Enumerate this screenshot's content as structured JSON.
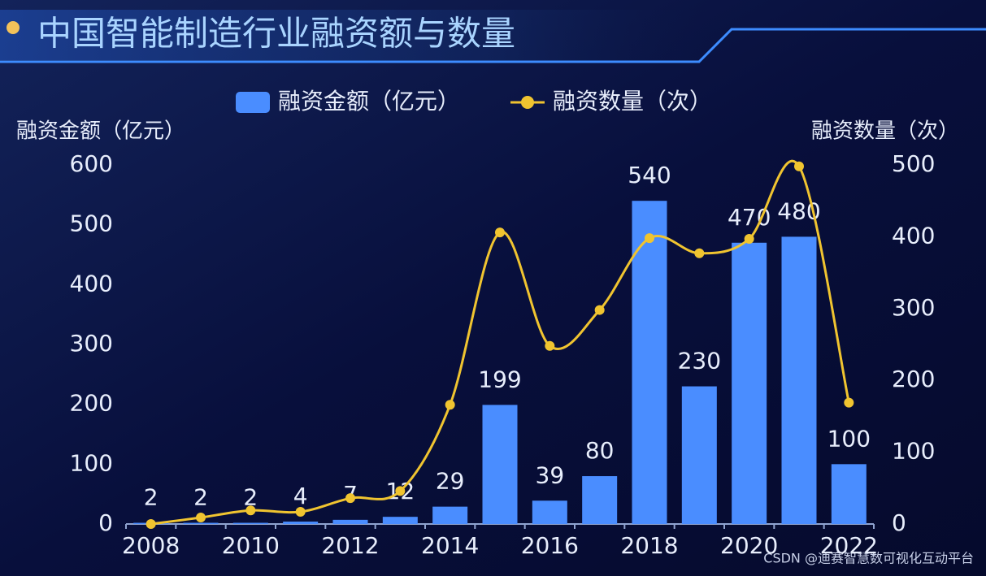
{
  "chart_data": {
    "type": "bar",
    "title": "中国智能制造行业融资额与数量",
    "y_label": "融资金额（亿元）",
    "y2_label": "融资数量（次）",
    "watermark": "CSDN @迪赛智慧数可视化互动平台",
    "categories": [
      "2008",
      null,
      "2010",
      null,
      "2012",
      null,
      "2014",
      null,
      "2016",
      null,
      "2018",
      null,
      "2020",
      null,
      "2022"
    ],
    "series": [
      {
        "name": "融资金额（亿元）",
        "type": "bar",
        "color": "#4a8dff",
        "values": [
          2,
          2,
          2,
          4,
          7,
          12,
          29,
          199,
          39,
          80,
          540,
          230,
          470,
          480,
          100
        ]
      },
      {
        "name": "融资数量（次）",
        "type": "line",
        "axis": "y2",
        "color": "#f0c430",
        "values": [
          0,
          9,
          19,
          17,
          36,
          46,
          166,
          406,
          248,
          298,
          398,
          377,
          397,
          498,
          169
        ]
      }
    ],
    "ylim": [
      0,
      600
    ],
    "yticks": [
      0,
      100,
      200,
      300,
      400,
      500,
      600
    ],
    "y2lim": [
      0,
      500
    ],
    "y2ticks": [
      0,
      100,
      200,
      300,
      400,
      500
    ],
    "legend": "top"
  }
}
